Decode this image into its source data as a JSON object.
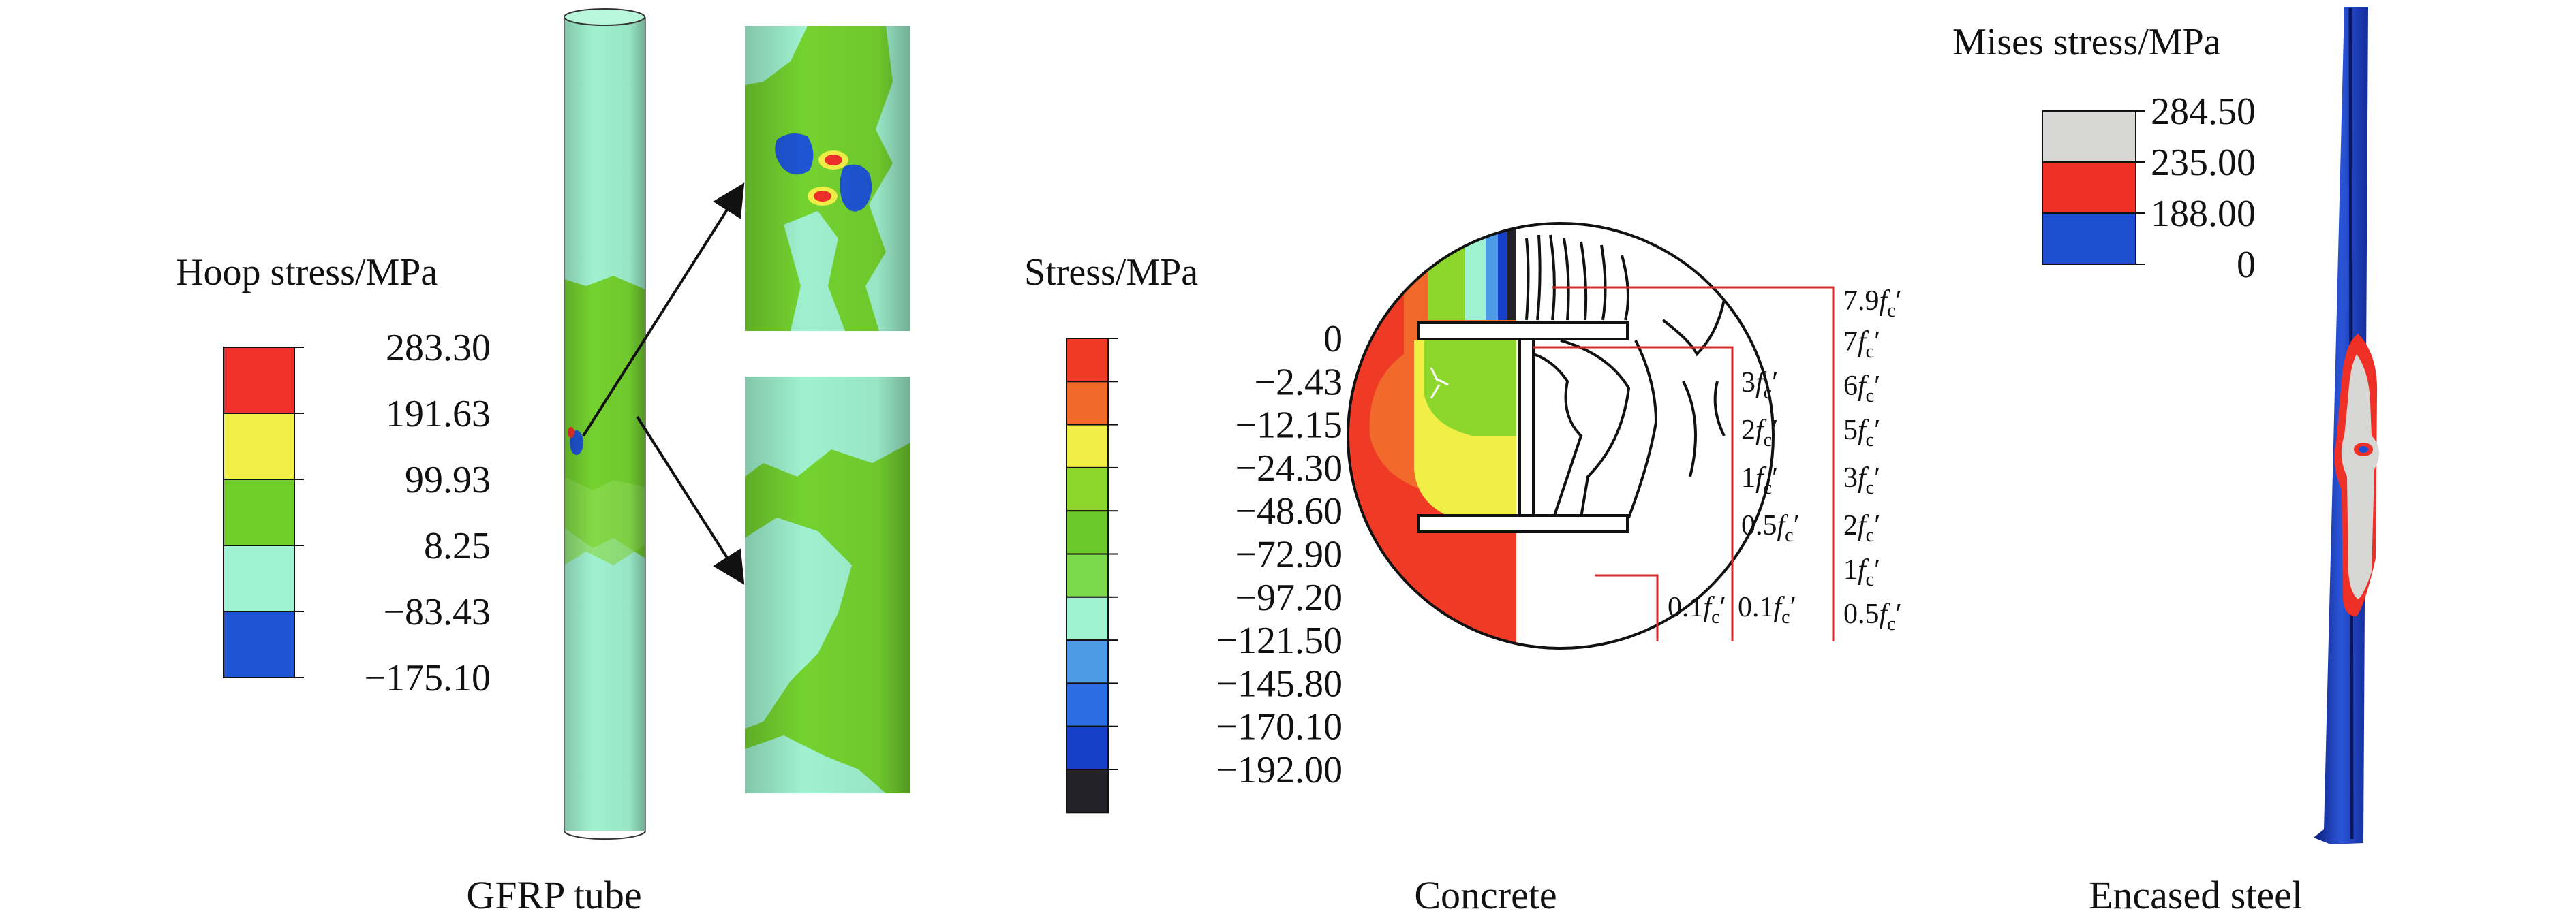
{
  "hoop_legend": {
    "title": "Hoop stress/MPa",
    "colors": [
      "#f0302b",
      "#f2f047",
      "#6fce2a",
      "#9ff3d2",
      "#1f55d4"
    ],
    "values": [
      "283.30",
      "191.63",
      "99.93",
      "8.25",
      "−83.43",
      "−175.10"
    ]
  },
  "concrete_legend": {
    "title": "Stress/MPa",
    "colors": [
      "#ef3a25",
      "#f2692c",
      "#f1ef45",
      "#8dd72c",
      "#6cc92a",
      "#7dd94c",
      "#9ef2d0",
      "#4d9ae6",
      "#2b6de2",
      "#1740c8",
      "#222228"
    ],
    "values": [
      "0",
      "−2.43",
      "−12.15",
      "−24.30",
      "−48.60",
      "−72.90",
      "−97.20",
      "−121.50",
      "−145.80",
      "−170.10",
      "−192.00"
    ]
  },
  "mises_legend": {
    "title": "Mises stress/MPa",
    "colors": [
      "#d7d8d5",
      "#ee3027",
      "#1f4fd1"
    ],
    "values": [
      "284.50",
      "235.00",
      "188.00",
      "0"
    ]
  },
  "concrete_annotations": {
    "inner_left": [
      "3",
      "2",
      "1",
      "0.5",
      "0.1"
    ],
    "inner_right": [
      "0.1"
    ],
    "outer": [
      "7.9",
      "7",
      "6",
      "5",
      "3",
      "2",
      "1",
      "0.5"
    ],
    "symbol": "f",
    "subscript": "c",
    "prime": "′"
  },
  "captions": {
    "gfrp": "GFRP tube",
    "concrete": "Concrete",
    "steel": "Encased steel"
  }
}
